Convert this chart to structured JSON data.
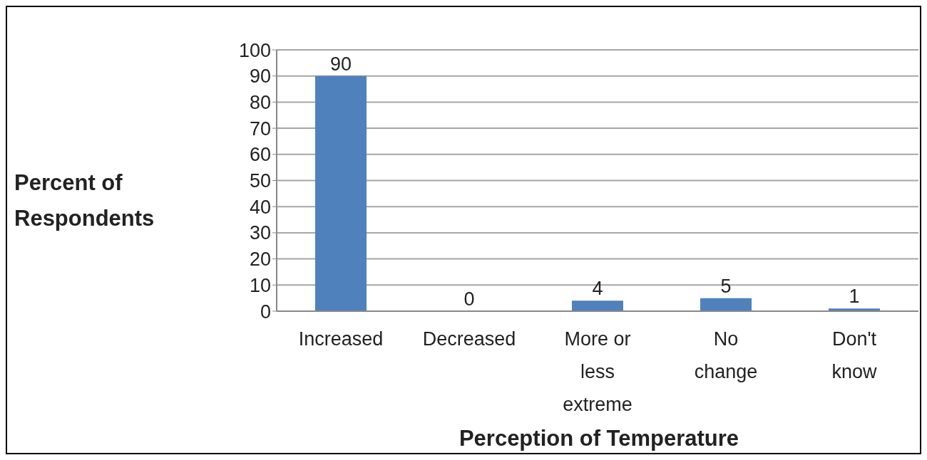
{
  "chart_data": {
    "type": "bar",
    "categories": [
      "Increased",
      "Decreased",
      "More or less extreme",
      "No change",
      "Don't know"
    ],
    "values": [
      90,
      0,
      4,
      5,
      1
    ],
    "color": "#4f81bd",
    "xlabel": "Perception of Temperature",
    "ylabel": "Percent of Respondents",
    "ylim": [
      0,
      100
    ],
    "yticks": [
      0,
      10,
      20,
      30,
      40,
      50,
      60,
      70,
      80,
      90,
      100
    ],
    "grid": "y",
    "data_labels": true
  }
}
